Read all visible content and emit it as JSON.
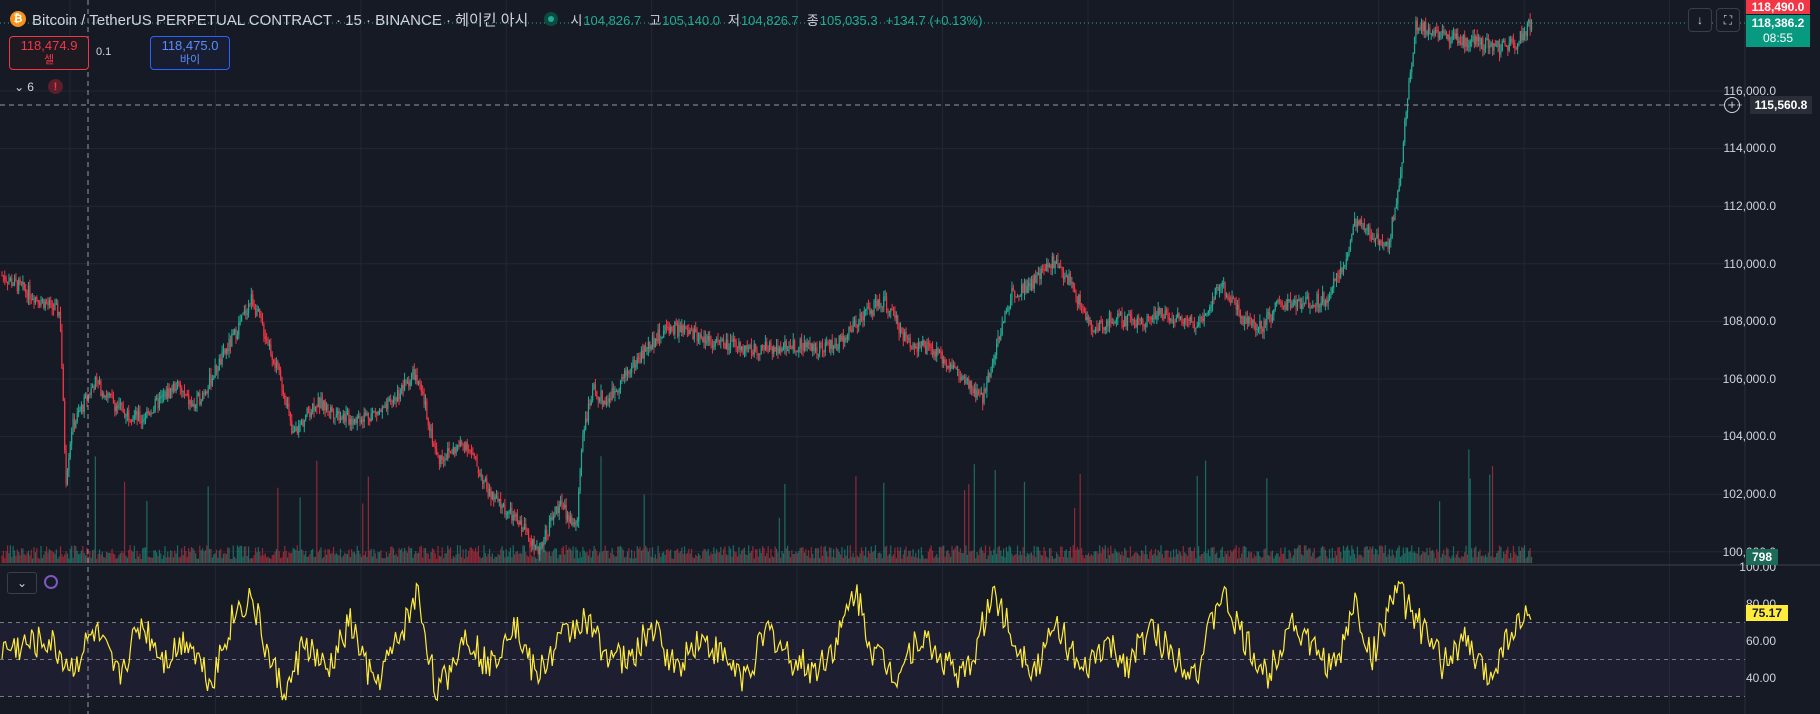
{
  "header": {
    "coin_icon": "bitcoin-icon",
    "symbol_title": "Bitcoin / TetherUS PERPETUAL CONTRACT · 15 · BINANCE · 헤이킨 아시",
    "ohlc": [
      {
        "key": "시",
        "value": "104,826.7"
      },
      {
        "key": "고",
        "value": "105,140.0"
      },
      {
        "key": "저",
        "value": "104,826.7"
      },
      {
        "key": "종",
        "value": "105,035.3"
      }
    ],
    "change": "+134.7 (+0.13%)",
    "buttons": [
      {
        "icon": "arrow-down-icon"
      },
      {
        "icon": "fullscreen-icon"
      }
    ]
  },
  "trade": {
    "sell_price": "118,474.9",
    "sell_label": "셀",
    "spread": "0.1",
    "buy_price": "118,475.0",
    "buy_label": "바이"
  },
  "indicators": {
    "count": "6",
    "alert_icon": "alert-icon"
  },
  "price_axis": {
    "ticks": [
      "116,000.0",
      "114,000.0",
      "112,000.0",
      "110,000.0",
      "108,000.0",
      "106,000.0",
      "104,000.0",
      "102,000.0",
      "100,000.0"
    ],
    "high_badge": "118,490.0",
    "last_price": "118,386.2",
    "countdown": "08:55",
    "crosshair_price": "115,560.8",
    "volume_badge": "798"
  },
  "rsi_axis": {
    "ticks": [
      "100.00",
      "80.00",
      "60.00",
      "40.00"
    ],
    "value_badge": "75.17",
    "levels": [
      70,
      50,
      30
    ]
  },
  "colors": {
    "background": "#161a25",
    "up": "#22ab94",
    "down": "#f23645",
    "rsi_line": "#ffeb3b",
    "rsi_band": "#7e57c2",
    "grid": "#232733"
  },
  "chart_data": [
    {
      "type": "candlestick",
      "title": "Bitcoin / TetherUS PERPETUAL CONTRACT · 15 · BINANCE · 헤이킨 아시",
      "ylim": [
        99500,
        118800
      ],
      "x": [
        0,
        50,
        55,
        60,
        80,
        100,
        120,
        150,
        165,
        180,
        200,
        215,
        230,
        245,
        250,
        270,
        300,
        330,
        355,
        365,
        375,
        400,
        420,
        440,
        455,
        460,
        470,
        480,
        495,
        500,
        510,
        520,
        540,
        560,
        575,
        600,
        620,
        650,
        680,
        700,
        720,
        740,
        760,
        780,
        800,
        820,
        830,
        845,
        850,
        870,
        890,
        905,
        920,
        940,
        955,
        980,
        1000,
        1030,
        1050,
        1070,
        1085,
        1100,
        1120,
        1140,
        1155,
        1165,
        1180,
        1195,
        1205,
        1210,
        1218,
        1230,
        1250,
        1270,
        1290,
        1305,
        1318
      ],
      "values": [
        109600,
        108300,
        102500,
        104300,
        105900,
        105000,
        104600,
        105800,
        105000,
        106000,
        107500,
        108800,
        107200,
        105300,
        104000,
        105200,
        104600,
        104900,
        106200,
        105000,
        103200,
        103800,
        102000,
        101200,
        100600,
        99900,
        100800,
        101700,
        100800,
        104200,
        105600,
        105200,
        106300,
        107300,
        107800,
        107500,
        107200,
        107000,
        107200,
        107100,
        107200,
        108200,
        108700,
        107300,
        107000,
        106400,
        105800,
        105300,
        106200,
        109000,
        109400,
        110100,
        109400,
        107600,
        108100,
        108000,
        108300,
        107900,
        109300,
        108100,
        107800,
        108600,
        108600,
        108800,
        109800,
        111400,
        111000,
        110700,
        113300,
        115500,
        118300,
        118100,
        117800,
        117700,
        117500,
        117700,
        118400
      ]
    },
    {
      "type": "line",
      "ylim": [
        0,
        100
      ],
      "x": [
        0,
        40,
        60,
        80,
        100,
        120,
        140,
        160,
        180,
        200,
        215,
        230,
        245,
        260,
        280,
        300,
        320,
        340,
        358,
        375,
        400,
        420,
        440,
        460,
        480,
        500,
        520,
        540,
        560,
        580,
        600,
        620,
        640,
        660,
        680,
        700,
        720,
        735,
        750,
        770,
        790,
        810,
        830,
        855,
        870,
        890,
        910,
        930,
        950,
        970,
        990,
        1010,
        1030,
        1050,
        1070,
        1090,
        1110,
        1130,
        1150,
        1165,
        1180,
        1200,
        1220,
        1240,
        1260,
        1280,
        1300,
        1318
      ],
      "values": [
        55,
        60,
        45,
        65,
        40,
        70,
        50,
        62,
        38,
        75,
        84,
        50,
        30,
        60,
        42,
        70,
        35,
        58,
        86,
        30,
        65,
        45,
        72,
        40,
        60,
        72,
        55,
        48,
        68,
        45,
        62,
        52,
        40,
        66,
        50,
        44,
        60,
        88,
        55,
        42,
        63,
        50,
        40,
        87,
        62,
        45,
        70,
        40,
        58,
        48,
        66,
        52,
        44,
        86,
        60,
        40,
        72,
        55,
        45,
        82,
        50,
        89,
        70,
        48,
        60,
        40,
        66,
        75
      ]
    }
  ]
}
